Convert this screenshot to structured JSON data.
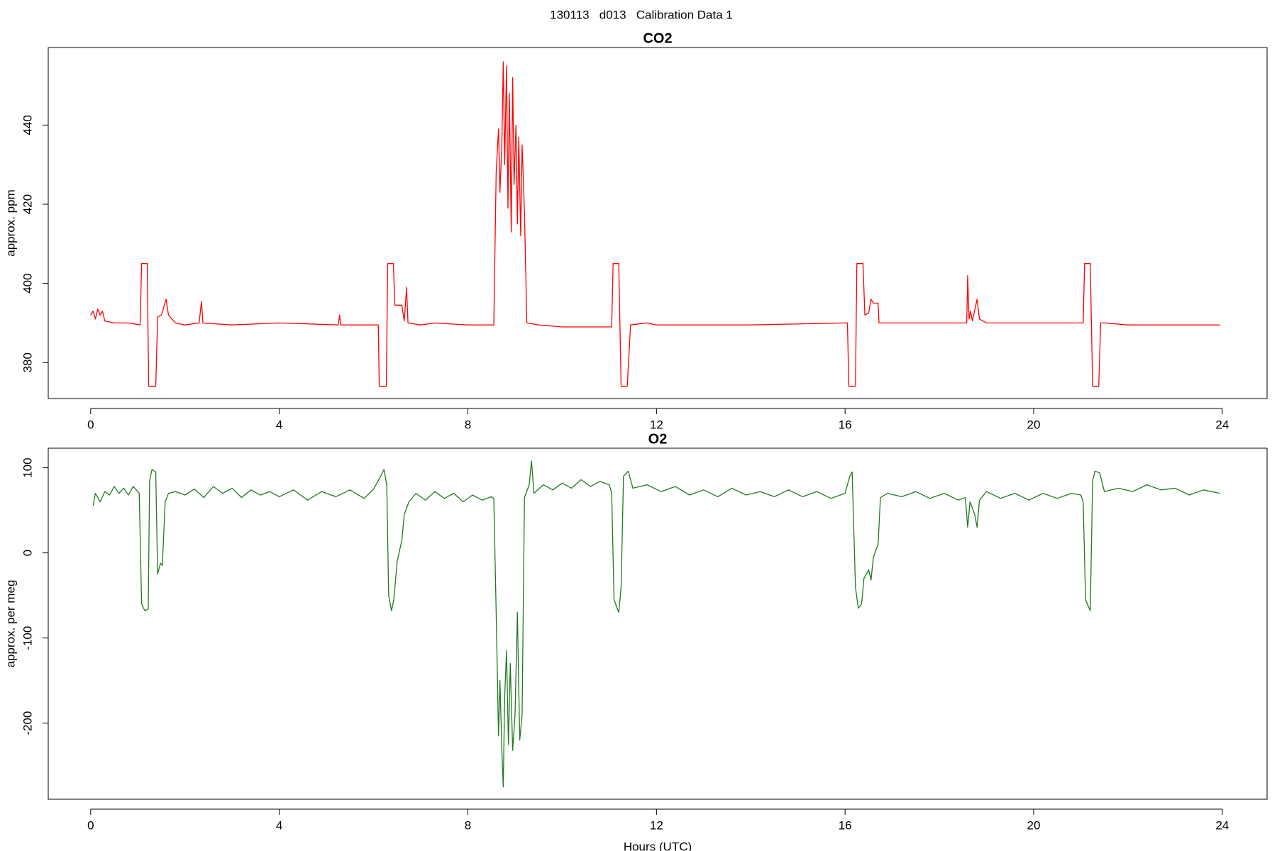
{
  "title": "130113   d013   Calibration Data 1",
  "chart_data": [
    {
      "type": "line",
      "title": "CO2",
      "ylabel": "approx. ppm",
      "color": "#ff0000",
      "xlim": [
        -0.9,
        24.95
      ],
      "xticks": [
        0,
        4,
        8,
        12,
        16,
        20,
        24
      ],
      "ylim": [
        370.9,
        459.6
      ],
      "yticks": [
        380,
        400,
        420,
        440
      ],
      "x": [
        0,
        0.05,
        0.1,
        0.15,
        0.2,
        0.25,
        0.3,
        0.5,
        0.8,
        1.05,
        1.08,
        1.2,
        1.23,
        1.38,
        1.42,
        1.5,
        1.6,
        1.65,
        1.8,
        2,
        2.3,
        2.35,
        2.38,
        3,
        4,
        5.25,
        5.28,
        5.3,
        6.1,
        6.12,
        6.27,
        6.3,
        6.42,
        6.45,
        6.6,
        6.65,
        6.7,
        6.73,
        7,
        7.3,
        8,
        8.55,
        8.6,
        8.65,
        8.68,
        8.72,
        8.75,
        8.78,
        8.82,
        8.85,
        8.88,
        8.92,
        8.95,
        8.98,
        9.02,
        9.05,
        9.08,
        9.12,
        9.15,
        9.2,
        9.25,
        9.5,
        10,
        10.5,
        11,
        11.05,
        11.08,
        11.2,
        11.25,
        11.38,
        11.45,
        11.8,
        12,
        14,
        16,
        16.05,
        16.08,
        16.22,
        16.25,
        16.38,
        16.42,
        16.5,
        16.55,
        16.6,
        16.7,
        16.72,
        17,
        18,
        18.58,
        18.6,
        18.63,
        18.66,
        18.7,
        18.8,
        18.85,
        19,
        20,
        21.05,
        21.08,
        21.2,
        21.25,
        21.38,
        21.42,
        21.5,
        22,
        23.95
      ],
      "values": [
        392,
        393,
        391,
        393.5,
        392,
        393,
        390.5,
        390,
        390,
        389.5,
        405,
        405,
        374,
        374,
        391.5,
        392,
        396,
        392,
        390,
        389.5,
        390,
        395.5,
        390,
        389.5,
        390,
        389.5,
        392,
        389.5,
        389.5,
        374,
        374,
        405,
        405,
        394.5,
        394.5,
        390.5,
        399,
        390,
        389.5,
        390,
        389.5,
        389.5,
        428,
        439,
        423,
        435,
        456,
        430,
        455,
        419,
        448,
        413,
        452,
        425,
        440,
        415,
        437,
        412,
        435,
        418,
        390,
        389.5,
        389,
        389,
        389,
        389,
        405,
        405,
        374,
        374,
        389.5,
        390,
        389.5,
        389.5,
        390,
        390,
        374,
        374,
        405,
        405,
        392,
        392.5,
        396,
        395,
        395,
        390,
        390,
        390,
        390,
        402,
        391,
        393,
        390.5,
        396,
        391,
        390,
        390,
        390,
        405,
        405,
        374,
        374,
        390,
        390,
        389.5,
        389.5
      ]
    },
    {
      "type": "line",
      "title": "O2",
      "ylabel": "approx. per meg",
      "xlabel": "Hours (UTC)",
      "color": "#1e7a1e",
      "xlim": [
        -0.9,
        24.95
      ],
      "xticks": [
        0,
        4,
        8,
        12,
        16,
        20,
        24
      ],
      "ylim": [
        -289.4,
        123
      ],
      "yticks": [
        -200,
        -100,
        0,
        100
      ],
      "x": [
        0.05,
        0.1,
        0.2,
        0.3,
        0.4,
        0.5,
        0.6,
        0.7,
        0.8,
        0.9,
        1.0,
        1.03,
        1.08,
        1.15,
        1.22,
        1.25,
        1.3,
        1.38,
        1.42,
        1.48,
        1.52,
        1.58,
        1.65,
        1.8,
        2.0,
        2.2,
        2.4,
        2.6,
        2.8,
        3.0,
        3.2,
        3.4,
        3.6,
        3.8,
        4.0,
        4.3,
        4.6,
        4.9,
        5.2,
        5.5,
        5.8,
        6.0,
        6.15,
        6.22,
        6.28,
        6.32,
        6.38,
        6.43,
        6.5,
        6.6,
        6.65,
        6.75,
        6.9,
        7.1,
        7.3,
        7.5,
        7.7,
        7.9,
        8.1,
        8.3,
        8.5,
        8.55,
        8.6,
        8.65,
        8.68,
        8.72,
        8.75,
        8.78,
        8.82,
        8.86,
        8.9,
        8.95,
        9.0,
        9.05,
        9.1,
        9.15,
        9.2,
        9.3,
        9.35,
        9.4,
        9.6,
        9.8,
        10.0,
        10.2,
        10.4,
        10.6,
        10.8,
        11.0,
        11.05,
        11.1,
        11.2,
        11.25,
        11.3,
        11.4,
        11.5,
        11.8,
        12.1,
        12.4,
        12.7,
        13.0,
        13.3,
        13.6,
        13.9,
        14.2,
        14.5,
        14.8,
        15.1,
        15.4,
        15.7,
        16.0,
        16.1,
        16.15,
        16.22,
        16.28,
        16.35,
        16.4,
        16.5,
        16.55,
        16.6,
        16.7,
        16.75,
        16.9,
        17.2,
        17.5,
        17.8,
        18.1,
        18.4,
        18.55,
        18.6,
        18.65,
        18.75,
        18.8,
        18.85,
        19.0,
        19.3,
        19.6,
        19.9,
        20.2,
        20.5,
        20.8,
        21.0,
        21.05,
        21.1,
        21.2,
        21.25,
        21.3,
        21.4,
        21.5,
        21.8,
        22.1,
        22.4,
        22.7,
        23.0,
        23.3,
        23.6,
        23.95
      ],
      "values": [
        55,
        70,
        60,
        72,
        68,
        78,
        70,
        76,
        68,
        78,
        72,
        70,
        -60,
        -68,
        -66,
        85,
        98,
        95,
        -25,
        -12,
        -15,
        60,
        70,
        72,
        68,
        75,
        65,
        78,
        70,
        76,
        65,
        74,
        68,
        72,
        66,
        74,
        62,
        72,
        66,
        74,
        64,
        75,
        90,
        98,
        80,
        -50,
        -68,
        -55,
        -10,
        15,
        45,
        60,
        70,
        62,
        72,
        64,
        70,
        60,
        68,
        62,
        66,
        64,
        -70,
        -215,
        -150,
        -230,
        -275,
        -170,
        -115,
        -225,
        -130,
        -232,
        -190,
        -70,
        -220,
        -190,
        65,
        80,
        108,
        70,
        80,
        74,
        82,
        76,
        86,
        78,
        84,
        80,
        70,
        -55,
        -70,
        -40,
        90,
        96,
        76,
        80,
        72,
        78,
        68,
        74,
        66,
        76,
        68,
        72,
        66,
        74,
        66,
        72,
        64,
        70,
        90,
        95,
        -40,
        -65,
        -60,
        -30,
        -20,
        -32,
        -5,
        10,
        65,
        70,
        66,
        72,
        64,
        70,
        62,
        65,
        30,
        60,
        45,
        30,
        62,
        72,
        64,
        70,
        62,
        70,
        64,
        70,
        68,
        60,
        -55,
        -68,
        85,
        96,
        94,
        72,
        76,
        72,
        80,
        74,
        76,
        68,
        74,
        70
      ]
    }
  ]
}
